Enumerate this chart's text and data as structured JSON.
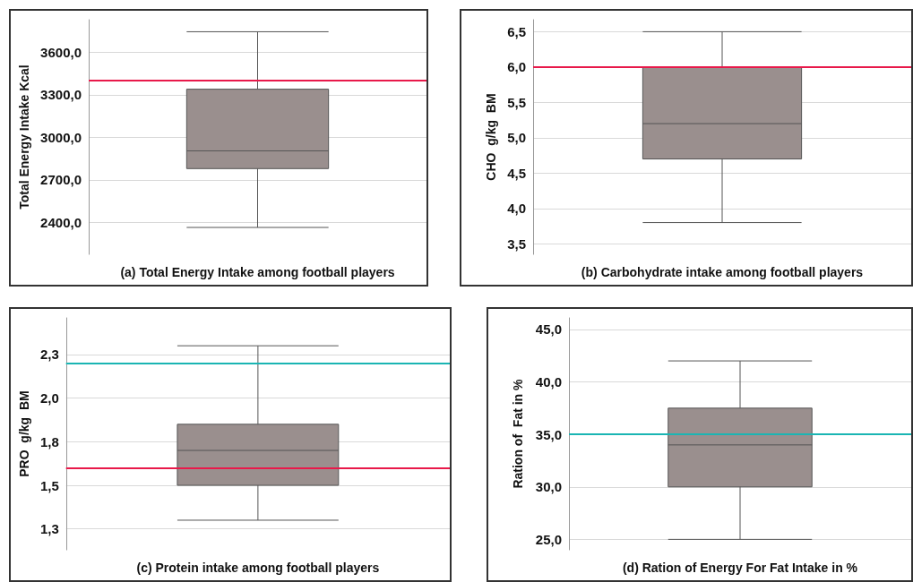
{
  "chart_data": [
    {
      "type": "box",
      "xlabel": "(a) Total Energy Intake among football players",
      "ylabel": "Total Energy Intake Kcal",
      "categories": [
        null
      ],
      "color": "#9a8f8e",
      "boxes": [
        {
          "low": 2365,
          "q1": 2780,
          "median": 2905,
          "q3": 3340,
          "high": 3745
        }
      ],
      "ylim": [
        2175,
        3830
      ],
      "yticks": [
        {
          "value": 2400,
          "label": "2400,0"
        },
        {
          "value": 2700,
          "label": "2700,0"
        },
        {
          "value": 3000,
          "label": "3000,0"
        },
        {
          "value": 3300,
          "label": "3300,0"
        },
        {
          "value": 3600,
          "label": "3600,0"
        }
      ],
      "ref_lines": [
        {
          "axis": "y",
          "value": 3400,
          "label": null,
          "color": "#e8194a"
        }
      ],
      "grid": "y"
    },
    {
      "type": "box",
      "xlabel": "(b) Carbohydrate intake among football players",
      "ylabel": "CHO  g/kg  BM",
      "categories": [
        null
      ],
      "color": "#9a8f8e",
      "boxes": [
        {
          "low": 3.8,
          "q1": 4.7,
          "median": 5.2,
          "q3": 6.0,
          "high": 6.5
        }
      ],
      "ylim": [
        3.35,
        6.67
      ],
      "yticks": [
        {
          "value": 3.5,
          "label": "3,5"
        },
        {
          "value": 4,
          "label": "4,0"
        },
        {
          "value": 4.5,
          "label": "4,5"
        },
        {
          "value": 5,
          "label": "5,0"
        },
        {
          "value": 5.5,
          "label": "5,5"
        },
        {
          "value": 6,
          "label": "6,0"
        },
        {
          "value": 6.5,
          "label": "6,5"
        }
      ],
      "ref_lines": [
        {
          "axis": "y",
          "value": 6.0,
          "label": null,
          "color": "#e8194a"
        }
      ],
      "grid": "y"
    },
    {
      "type": "box",
      "xlabel": "(c) Protein intake among football players",
      "ylabel": "PRO  g/kg  BM",
      "categories": [
        null
      ],
      "color": "#9a8f8e",
      "boxes": [
        {
          "low": 1.3,
          "q1": 1.5,
          "median": 1.7,
          "q3": 1.85,
          "high": 2.3
        }
      ],
      "ylim": [
        1.13,
        2.46
      ],
      "yticks": [
        {
          "value": 1.25,
          "label": "1,3"
        },
        {
          "value": 1.5,
          "label": "1,5"
        },
        {
          "value": 1.75,
          "label": "1,8"
        },
        {
          "value": 2.0,
          "label": "2,0"
        },
        {
          "value": 2.25,
          "label": "2,3"
        }
      ],
      "ref_lines": [
        {
          "axis": "y",
          "value": 2.2,
          "label": null,
          "color": "#1ab5b3"
        },
        {
          "axis": "y",
          "value": 1.6,
          "label": null,
          "color": "#e8194a"
        }
      ],
      "grid": "y"
    },
    {
      "type": "box",
      "xlabel": "(d) Ration of Energy For Fat Intake in %",
      "ylabel": "Ration of  Fat in %",
      "categories": [
        null
      ],
      "color": "#9a8f8e",
      "boxes": [
        {
          "low": 25,
          "q1": 30,
          "median": 34,
          "q3": 37.5,
          "high": 42
        }
      ],
      "ylim": [
        24,
        46.1
      ],
      "yticks": [
        {
          "value": 25,
          "label": "25,0"
        },
        {
          "value": 30,
          "label": "30,0"
        },
        {
          "value": 35,
          "label": "35,0"
        },
        {
          "value": 40,
          "label": "40,0"
        },
        {
          "value": 45,
          "label": "45,0"
        }
      ],
      "ref_lines": [
        {
          "axis": "y",
          "value": 35,
          "label": null,
          "color": "#1ab5b3"
        }
      ],
      "grid": "y"
    }
  ]
}
